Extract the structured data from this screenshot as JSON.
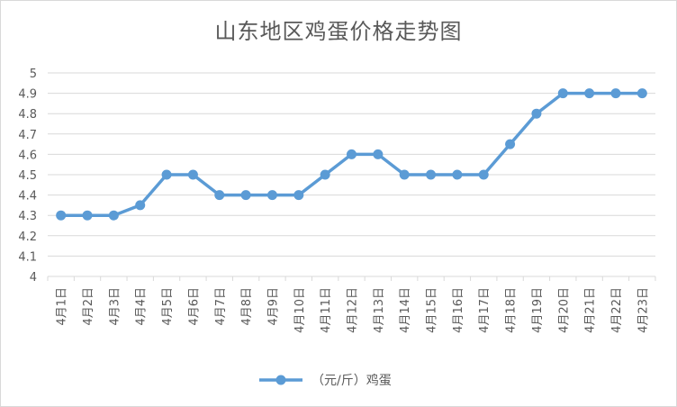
{
  "chart_data": {
    "type": "line",
    "title": "山东地区鸡蛋价格走势图",
    "categories": [
      "4月1日",
      "4月2日",
      "4月3日",
      "4月4日",
      "4月5日",
      "4月6日",
      "4月7日",
      "4月8日",
      "4月9日",
      "4月10日",
      "4月11日",
      "4月12日",
      "4月13日",
      "4月14日",
      "4月15日",
      "4月16日",
      "4月17日",
      "4月18日",
      "4月19日",
      "4月20日",
      "4月21日",
      "4月22日",
      "4月23日"
    ],
    "series": [
      {
        "name": "（元/斤）鸡蛋",
        "values": [
          4.3,
          4.3,
          4.3,
          4.35,
          4.5,
          4.5,
          4.4,
          4.4,
          4.4,
          4.4,
          4.5,
          4.6,
          4.6,
          4.5,
          4.5,
          4.5,
          4.5,
          4.65,
          4.8,
          4.9,
          4.9,
          4.9,
          4.9
        ]
      }
    ],
    "yticks": [
      "4",
      "4.1",
      "4.2",
      "4.3",
      "4.4",
      "4.5",
      "4.6",
      "4.7",
      "4.8",
      "4.9",
      "5"
    ],
    "ylim": [
      4,
      5
    ],
    "grid": true,
    "legend_position": "bottom",
    "line_color": "#5b9bd5",
    "grid_color": "#d9d9d9"
  }
}
